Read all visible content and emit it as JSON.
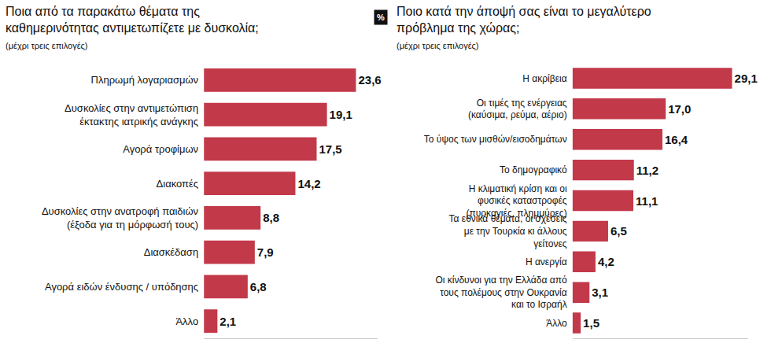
{
  "chart_data": [
    {
      "type": "bar",
      "title": "Ποια από τα παρακάτω θέματα της καθημερινότητας αντιμετωπίζετε με δυσκολία;",
      "subtitle": "(μέχρι τρεις επιλογές)",
      "categories": [
        "Πληρωμή λογαριασμών",
        "Δυσκολίες στην αντιμετώπιση έκτακτης ιατρικής ανάγκης",
        "Αγορά τροφίμων",
        "Διακοπές",
        "Δυσκολίες στην ανατροφή παιδιών (έξοδα για τη μόρφωσή τους)",
        "Διασκέδαση",
        "Αγορά ειδών ένδυσης / υπόδησης",
        "Άλλο"
      ],
      "values": [
        23.6,
        19.1,
        17.5,
        14.2,
        8.8,
        7.9,
        6.8,
        2.1
      ],
      "value_labels": [
        "23,6",
        "19,1",
        "17,5",
        "14,2",
        "8,8",
        "7,9",
        "6,8",
        "2,1"
      ],
      "color": "#c2394a",
      "orientation": "horizontal",
      "xlim": [
        0,
        27
      ],
      "xticks": [],
      "data_labels": true,
      "tick_labels": "y"
    },
    {
      "type": "bar",
      "title": "Ποιο κατά την άποψή σας είναι το μεγαλύτερο πρόβλημα της χώρας;",
      "subtitle": "(μέχρι τρεις επιλογές)",
      "annotations": [
        "%"
      ],
      "categories": [
        "Η ακρίβεια",
        "Οι τιμές της ενέργειας (καύσιμα, ρεύμα, αέριο)",
        "Το ύψος των μισθών/εισοδημάτων",
        "Το δημογραφικό",
        "Η κλιματική κρίση και οι φυσικές καταστροφές (πυρκαγιές, πλημμύρες)",
        "Τα εθνικά θέματα, οι σχέσεις με την Τουρκία κι άλλους γείτονες",
        "Η ανεργία",
        "Οι κίνδυνοι για την Ελλάδα από τους πολέμους στην Ουκρανία και το Ισραήλ",
        "Άλλο"
      ],
      "values": [
        29.1,
        17.0,
        16.4,
        11.2,
        11.1,
        6.5,
        4.2,
        3.1,
        1.5
      ],
      "value_labels": [
        "29,1",
        "17,0",
        "16,4",
        "11,2",
        "11,1",
        "6,5",
        "4,2",
        "3,1",
        "1,5"
      ],
      "color": "#c2394a",
      "orientation": "horizontal",
      "xlim": [
        0,
        32
      ],
      "xticks": [],
      "data_labels": true,
      "tick_labels": "y"
    }
  ]
}
